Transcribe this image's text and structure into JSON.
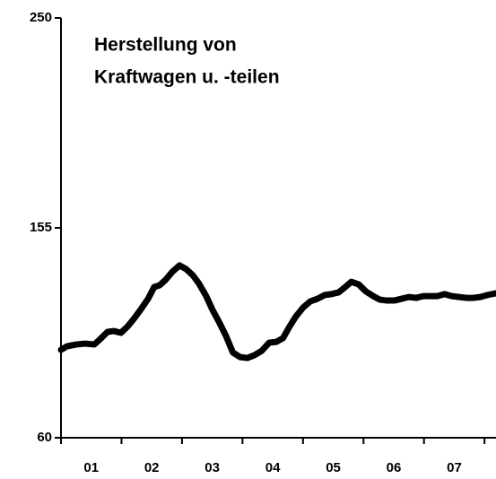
{
  "chart_data": {
    "type": "line",
    "title": [
      "Herstellung von",
      "Kraftwagen u. -teilen"
    ],
    "x": [
      2001.0,
      2001.1,
      2001.25,
      2001.4,
      2001.55,
      2001.65,
      2001.77,
      2001.87,
      2001.99,
      2002.1,
      2002.21,
      2002.33,
      2002.44,
      2002.54,
      2002.63,
      2002.73,
      2002.84,
      2002.96,
      2003.07,
      2003.18,
      2003.28,
      2003.4,
      2003.5,
      2003.62,
      2003.73,
      2003.84,
      2003.96,
      2004.08,
      2004.2,
      2004.32,
      2004.44,
      2004.56,
      2004.67,
      2004.76,
      2004.88,
      2005.0,
      2005.12,
      2005.24,
      2005.36,
      2005.47,
      2005.59,
      2005.68,
      2005.8,
      2005.92,
      2006.04,
      2006.16,
      2006.27,
      2006.39,
      2006.51,
      2006.63,
      2006.75,
      2006.87,
      2006.99,
      2007.1,
      2007.22,
      2007.34,
      2007.46,
      2007.58,
      2007.7,
      2007.81,
      2007.93,
      2008.05,
      2008.19
    ],
    "series": [
      {
        "color": "#000000",
        "values": [
          99.8,
          101.4,
          102.2,
          102.6,
          102.2,
          104.7,
          107.9,
          108.3,
          107.5,
          110.3,
          114.0,
          118.5,
          122.9,
          128.2,
          129.0,
          131.5,
          135.1,
          138.0,
          136.3,
          133.5,
          129.8,
          124.1,
          118.1,
          112.0,
          105.9,
          98.6,
          96.5,
          96.1,
          97.4,
          99.4,
          103.0,
          103.4,
          105.1,
          109.5,
          114.8,
          118.9,
          121.7,
          122.9,
          124.6,
          125.0,
          125.8,
          127.8,
          130.6,
          129.4,
          126.2,
          124.1,
          122.5,
          122.1,
          122.1,
          122.9,
          123.7,
          123.3,
          124.1,
          124.1,
          124.1,
          125.0,
          124.1,
          123.7,
          123.3,
          123.3,
          123.7,
          124.6,
          125.4
        ]
      }
    ],
    "xlim": [
      2001.0,
      2008.19
    ],
    "xticks": [
      2001,
      2002,
      2003,
      2004,
      2005,
      2006,
      2007,
      2008
    ],
    "xtick_labels": [
      {
        "value": 2001.5,
        "label": "01"
      },
      {
        "value": 2002.5,
        "label": "02"
      },
      {
        "value": 2003.5,
        "label": "03"
      },
      {
        "value": 2004.5,
        "label": "04"
      },
      {
        "value": 2005.5,
        "label": "05"
      },
      {
        "value": 2006.5,
        "label": "06"
      },
      {
        "value": 2007.5,
        "label": "07"
      }
    ],
    "ylim": [
      60,
      250
    ],
    "yticks": [
      60,
      155,
      250
    ],
    "grid": false
  }
}
